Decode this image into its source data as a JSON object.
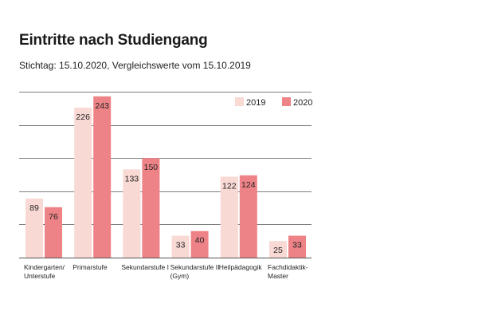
{
  "chart_data": {
    "type": "bar",
    "title": "Eintritte nach Studiengang",
    "subtitle": "Stichtag: 15.10.2020, Vergleichswerte vom 15.10.2019",
    "categories": [
      [
        "Kindergarten/",
        "Unterstufe"
      ],
      [
        "Primarstufe"
      ],
      [
        "Sekundarstufe I"
      ],
      [
        "Sekundarstufe II",
        "(Gym)"
      ],
      [
        "Heilpädagogik"
      ],
      [
        "Fachdidaktik-",
        "Master"
      ]
    ],
    "series": [
      {
        "name": "2019",
        "color": "#f9d9d4",
        "values": [
          89,
          226,
          133,
          33,
          122,
          25
        ]
      },
      {
        "name": "2020",
        "color": "#ee8387",
        "values": [
          76,
          243,
          150,
          40,
          124,
          33
        ]
      }
    ],
    "ylim": [
      0,
      250
    ],
    "grid": true,
    "legend": "top-right",
    "axis_color": "#555555",
    "grid_color": "#555555"
  }
}
